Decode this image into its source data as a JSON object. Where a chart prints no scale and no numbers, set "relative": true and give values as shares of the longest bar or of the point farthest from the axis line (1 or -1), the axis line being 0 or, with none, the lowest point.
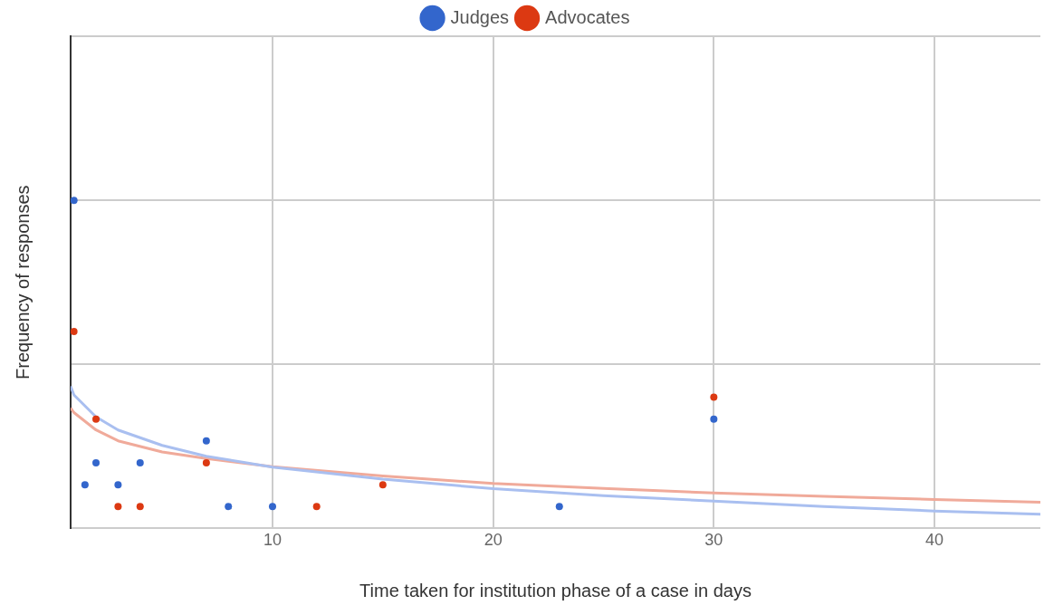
{
  "chart_data": {
    "type": "scatter",
    "xlabel": "Time taken for institution phase of a case in days",
    "ylabel": "Frequency of responses",
    "relative": true,
    "xlim": [
      0.85,
      44.8
    ],
    "xticks": [
      10,
      20,
      30,
      40
    ],
    "grid": true,
    "legend": "top",
    "marker": "circle",
    "series": [
      {
        "name": "Judges",
        "color": "#3366cc",
        "x": [
          1,
          1.5,
          2,
          3,
          4,
          7,
          8,
          10,
          23,
          30
        ],
        "values": [
          1,
          0.133,
          0.2,
          0.133,
          0.2,
          0.267,
          0.067,
          0.067,
          0.067,
          0.333
        ]
      },
      {
        "name": "Advocates",
        "color": "#dc3912",
        "x": [
          1,
          2,
          3,
          4,
          7,
          12,
          15,
          30
        ],
        "values": [
          0.6,
          0.333,
          0.067,
          0.067,
          0.2,
          0.067,
          0.133,
          0.4
        ]
      },
      {
        "type": "line",
        "marker": "none",
        "color": "#a9bff0",
        "x": [
          0.85,
          1,
          2,
          3,
          5,
          7,
          10,
          15,
          20,
          25,
          30,
          35,
          40,
          44.8
        ],
        "values": [
          0.433,
          0.407,
          0.34,
          0.3,
          0.253,
          0.22,
          0.187,
          0.15,
          0.121,
          0.1,
          0.083,
          0.067,
          0.053,
          0.043
        ]
      },
      {
        "type": "line",
        "marker": "none",
        "color": "#f0aa9a",
        "x": [
          0.85,
          1,
          2,
          3,
          5,
          7,
          10,
          15,
          20,
          25,
          30,
          35,
          40,
          44.8
        ],
        "values": [
          0.367,
          0.353,
          0.3,
          0.267,
          0.233,
          0.213,
          0.188,
          0.16,
          0.137,
          0.122,
          0.108,
          0.098,
          0.088,
          0.08
        ]
      }
    ]
  }
}
